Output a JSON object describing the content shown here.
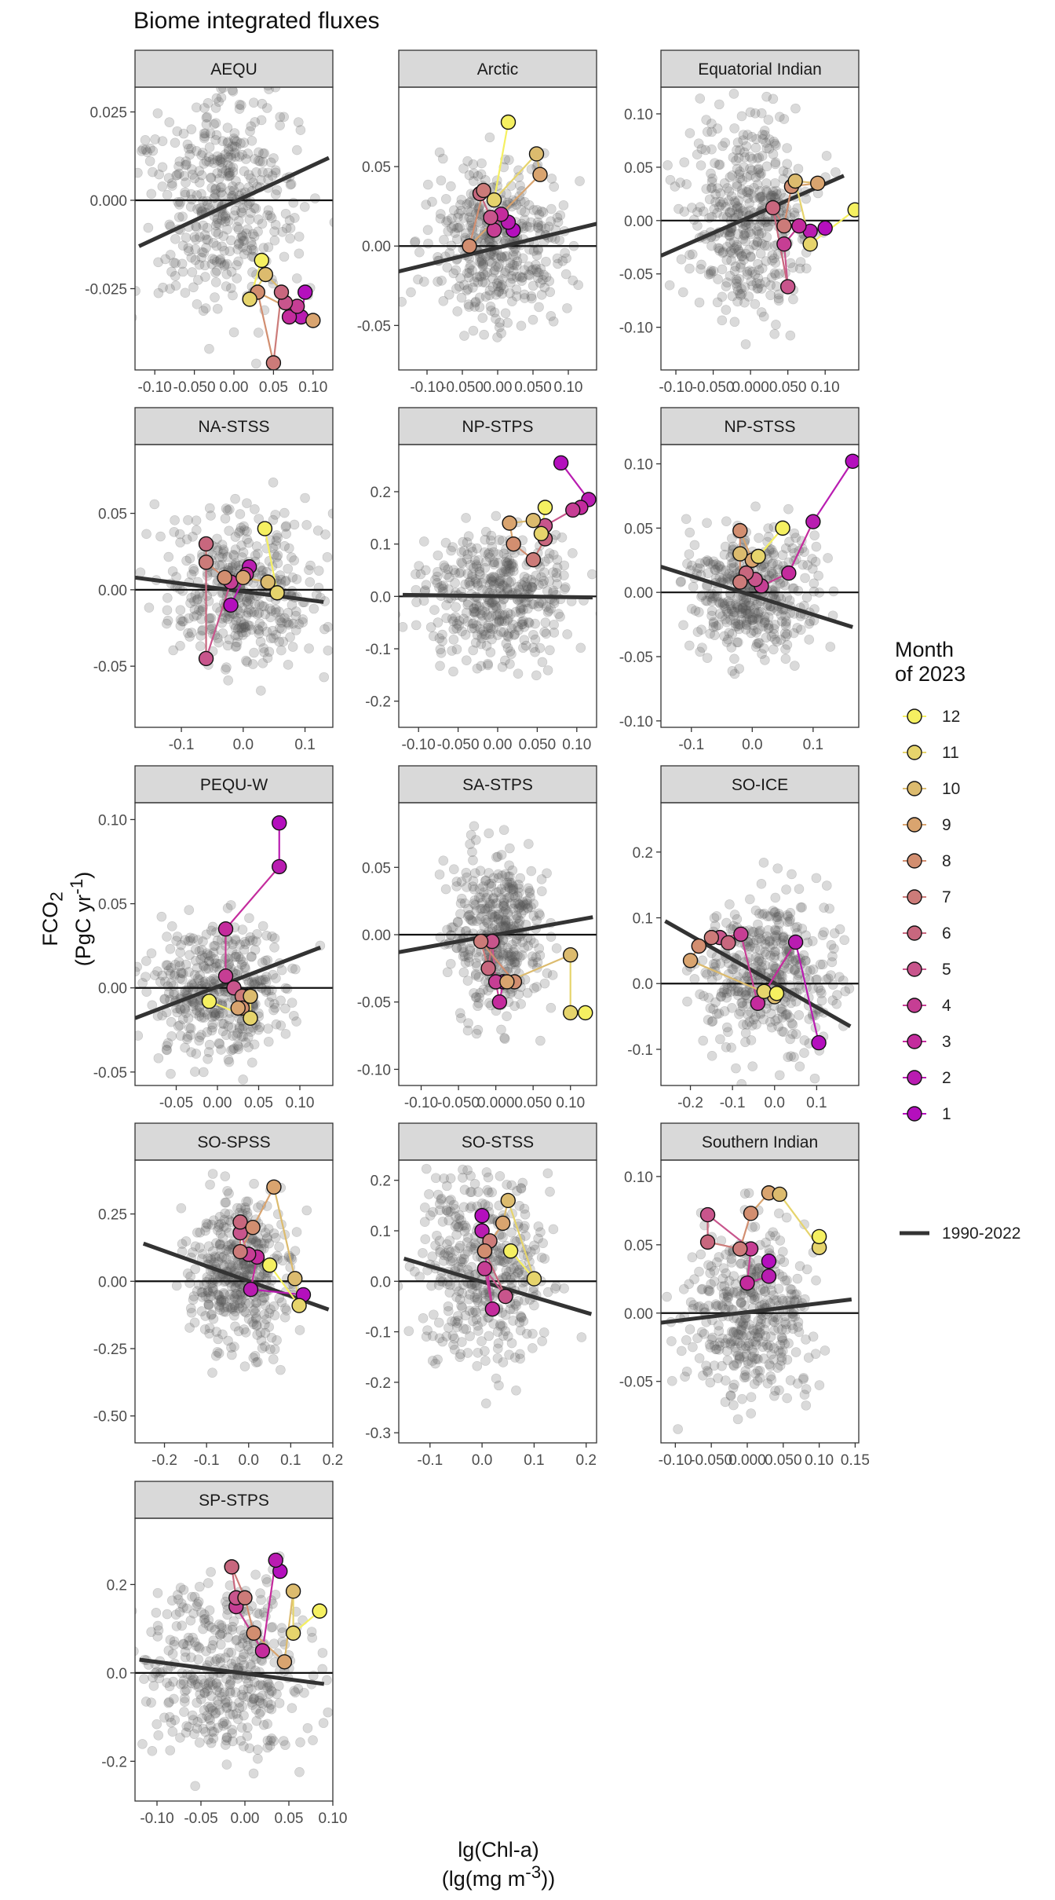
{
  "title": "Biome integrated fluxes",
  "y_axis_label": "FCO2 (PgC yr-1)",
  "x_axis_label": "lg(Chl-a) (lg(mg m-3))",
  "legend": {
    "title": "Month of 2023",
    "months": [
      "12",
      "11",
      "10",
      "9",
      "8",
      "7",
      "6",
      "5",
      "4",
      "3",
      "2",
      "1"
    ],
    "line_label": "1990-2022"
  },
  "colors": {
    "1": "#b40fbd",
    "2": "#b91cb1",
    "3": "#c42b9d",
    "4": "#c63e94",
    "5": "#c8558c",
    "6": "#c8677e",
    "7": "#cc7b79",
    "8": "#d28e70",
    "9": "#d9a46f",
    "10": "#dcbb6e",
    "11": "#e6d46c",
    "12": "#f5f061",
    "background_points": "#555555",
    "regression_line": "#333333",
    "strip": "#d9d9d9"
  },
  "chart_data": [
    {
      "type": "scatter",
      "title": "AEQU",
      "xlim": [
        -0.125,
        0.125
      ],
      "ylim": [
        -0.048,
        0.032
      ],
      "x_ticks": [
        -0.1,
        -0.05,
        0.0,
        0.05,
        0.1
      ],
      "x_tick_labels": [
        "-0.10",
        "-0.050",
        "0.00",
        "0.05",
        "0.10"
      ],
      "y_ticks": [
        -0.025,
        0.0,
        0.025
      ],
      "y_tick_labels": [
        "-0.025",
        "0.000",
        "0.025"
      ],
      "background": {
        "center": [
          -0.01,
          0.0
        ],
        "spread": [
          0.045,
          0.015
        ]
      },
      "regression": [
        [
          -0.12,
          -0.013
        ],
        [
          0.12,
          0.012
        ]
      ],
      "months_x": [
        0.09,
        0.085,
        0.07,
        0.08,
        0.065,
        0.06,
        0.05,
        0.03,
        0.1,
        0.04,
        0.02,
        0.035
      ],
      "months_y": [
        -0.026,
        -0.033,
        -0.033,
        -0.03,
        -0.029,
        -0.026,
        -0.046,
        -0.026,
        -0.034,
        -0.021,
        -0.028,
        -0.017
      ]
    },
    {
      "type": "scatter",
      "title": "Arctic",
      "xlim": [
        -0.14,
        0.14
      ],
      "ylim": [
        -0.078,
        0.1
      ],
      "x_ticks": [
        -0.1,
        -0.05,
        0.0,
        0.05,
        0.1
      ],
      "x_tick_labels": [
        "-0.10",
        "-0.050",
        "0.00",
        "0.050",
        "0.10"
      ],
      "y_ticks": [
        -0.05,
        0.0,
        0.05
      ],
      "y_tick_labels": [
        "-0.05",
        "0.00",
        "0.05"
      ],
      "background": {
        "center": [
          0.0,
          0.0
        ],
        "spread": [
          0.045,
          0.025
        ]
      },
      "regression": [
        [
          -0.14,
          -0.016
        ],
        [
          0.14,
          0.014
        ]
      ],
      "months_x": [
        0.022,
        0.015,
        0.005,
        -0.005,
        -0.01,
        -0.025,
        -0.02,
        -0.04,
        0.06,
        0.055,
        -0.005,
        0.015
      ],
      "months_y": [
        0.01,
        0.015,
        0.02,
        0.01,
        0.018,
        0.033,
        0.035,
        0.0,
        0.045,
        0.058,
        0.029,
        0.078
      ]
    },
    {
      "type": "scatter",
      "title": "Equatorial Indian",
      "xlim": [
        -0.12,
        0.145
      ],
      "ylim": [
        -0.14,
        0.125
      ],
      "x_ticks": [
        -0.1,
        -0.05,
        0.0,
        0.05,
        0.1
      ],
      "x_tick_labels": [
        "-0.10",
        "-0.050",
        "0.000",
        "0.050",
        "0.10"
      ],
      "y_ticks": [
        -0.1,
        -0.05,
        0.0,
        0.05,
        0.1
      ],
      "y_tick_labels": [
        "-0.10",
        "-0.05",
        "0.00",
        "0.05",
        "0.10"
      ],
      "background": {
        "center": [
          0.0,
          0.0
        ],
        "spread": [
          0.04,
          0.045
        ]
      },
      "regression": [
        [
          -0.12,
          -0.033
        ],
        [
          0.125,
          0.042
        ]
      ],
      "months_x": [
        0.1,
        0.08,
        0.065,
        0.045,
        0.05,
        0.03,
        0.045,
        0.055,
        0.09,
        0.06,
        0.08,
        0.14
      ],
      "months_y": [
        -0.007,
        -0.01,
        -0.005,
        -0.022,
        -0.062,
        0.012,
        -0.005,
        0.032,
        0.035,
        0.037,
        -0.022,
        0.01
      ]
    },
    {
      "type": "scatter",
      "title": "NA-STSS",
      "xlim": [
        -0.175,
        0.145
      ],
      "ylim": [
        -0.09,
        0.095
      ],
      "x_ticks": [
        -0.1,
        0.0,
        0.1
      ],
      "x_tick_labels": [
        "-0.1",
        "0.0",
        "0.1"
      ],
      "y_ticks": [
        -0.05,
        0.0,
        0.05
      ],
      "y_tick_labels": [
        "-0.05",
        "0.00",
        "0.05"
      ],
      "background": {
        "center": [
          0.0,
          0.0
        ],
        "spread": [
          0.06,
          0.025
        ]
      },
      "regression": [
        [
          -0.175,
          0.008
        ],
        [
          0.13,
          -0.008
        ]
      ],
      "months_x": [
        -0.02,
        0.01,
        0.005,
        -0.02,
        -0.06,
        -0.06,
        -0.06,
        -0.03,
        0.0,
        0.04,
        0.055,
        0.035
      ],
      "months_y": [
        -0.01,
        0.015,
        0.01,
        0.005,
        -0.045,
        0.03,
        0.018,
        0.008,
        0.008,
        0.005,
        -0.002,
        0.04
      ]
    },
    {
      "type": "scatter",
      "title": "NP-STPS",
      "xlim": [
        -0.125,
        0.125
      ],
      "ylim": [
        -0.25,
        0.29
      ],
      "x_ticks": [
        -0.1,
        -0.05,
        0.0,
        0.05,
        0.1
      ],
      "x_tick_labels": [
        "-0.10",
        "-0.050",
        "0.00",
        "0.050",
        "0.10"
      ],
      "y_ticks": [
        -0.2,
        -0.1,
        0.0,
        0.1,
        0.2
      ],
      "y_tick_labels": [
        "-0.2",
        "-0.1",
        "0.0",
        "0.1",
        "0.2"
      ],
      "background": {
        "center": [
          0.0,
          0.0
        ],
        "spread": [
          0.045,
          0.06
        ]
      },
      "regression": [
        [
          -0.12,
          0.003
        ],
        [
          0.12,
          -0.002
        ]
      ],
      "months_x": [
        0.08,
        0.115,
        0.105,
        0.095,
        0.06,
        0.06,
        0.045,
        0.02,
        0.015,
        0.045,
        0.055,
        0.06
      ],
      "months_y": [
        0.255,
        0.185,
        0.17,
        0.165,
        0.135,
        0.11,
        0.07,
        0.1,
        0.14,
        0.145,
        0.12,
        0.17
      ]
    },
    {
      "type": "scatter",
      "title": "NP-STSS",
      "xlim": [
        -0.15,
        0.175
      ],
      "ylim": [
        -0.105,
        0.115
      ],
      "x_ticks": [
        -0.1,
        0.0,
        0.1
      ],
      "x_tick_labels": [
        "-0.1",
        "0.0",
        "0.1"
      ],
      "y_ticks": [
        -0.1,
        -0.05,
        0.0,
        0.05,
        0.1
      ],
      "y_tick_labels": [
        "-0.10",
        "-0.05",
        "0.00",
        "0.05",
        "0.10"
      ],
      "background": {
        "center": [
          0.0,
          0.0
        ],
        "spread": [
          0.05,
          0.025
        ]
      },
      "regression": [
        [
          -0.15,
          0.02
        ],
        [
          0.165,
          -0.027
        ]
      ],
      "months_x": [
        0.165,
        0.1,
        0.06,
        0.015,
        0.005,
        -0.01,
        -0.02,
        -0.02,
        0.0,
        -0.02,
        0.01,
        0.05
      ],
      "months_y": [
        0.102,
        0.055,
        0.015,
        0.005,
        0.01,
        0.015,
        0.008,
        0.048,
        0.025,
        0.03,
        0.028,
        0.05
      ]
    },
    {
      "type": "scatter",
      "title": "PEQU-W",
      "xlim": [
        -0.1,
        0.14
      ],
      "ylim": [
        -0.058,
        0.11
      ],
      "x_ticks": [
        -0.05,
        0.0,
        0.05,
        0.1
      ],
      "x_tick_labels": [
        "-0.05",
        "0.00",
        "0.05",
        "0.10"
      ],
      "y_ticks": [
        -0.05,
        0.0,
        0.05,
        0.1
      ],
      "y_tick_labels": [
        "-0.05",
        "0.00",
        "0.05",
        "0.10"
      ],
      "background": {
        "center": [
          0.0,
          0.0
        ],
        "spread": [
          0.04,
          0.02
        ]
      },
      "regression": [
        [
          -0.1,
          -0.018
        ],
        [
          0.125,
          0.024
        ]
      ],
      "months_x": [
        0.075,
        0.075,
        0.01,
        0.01,
        0.02,
        0.035,
        0.03,
        0.03,
        0.025,
        0.04,
        0.04,
        -0.01
      ],
      "months_y": [
        0.098,
        0.072,
        0.035,
        0.007,
        0.0,
        -0.005,
        -0.005,
        -0.012,
        -0.012,
        -0.005,
        -0.018,
        -0.008
      ]
    },
    {
      "type": "scatter",
      "title": "SA-STPS",
      "xlim": [
        -0.13,
        0.135
      ],
      "ylim": [
        -0.112,
        0.098
      ],
      "x_ticks": [
        -0.1,
        -0.05,
        0.0,
        0.05,
        0.1
      ],
      "x_tick_labels": [
        "-0.10",
        "-0.050",
        "0.000",
        "0.050",
        "0.10"
      ],
      "y_ticks": [
        -0.1,
        -0.05,
        0.0,
        0.05
      ],
      "y_tick_labels": [
        "-0.10",
        "-0.05",
        "0.00",
        "0.05"
      ],
      "background": {
        "center": [
          0.0,
          0.0
        ],
        "spread": [
          0.03,
          0.03
        ]
      },
      "regression": [
        [
          -0.13,
          -0.013
        ],
        [
          0.13,
          0.013
        ]
      ],
      "months_x": [
        0.01,
        0.01,
        0.005,
        0.0,
        -0.005,
        -0.01,
        -0.02,
        0.025,
        0.015,
        0.1,
        0.1,
        0.12
      ],
      "months_y": [
        -0.035,
        -0.035,
        -0.05,
        -0.035,
        -0.005,
        -0.025,
        -0.005,
        -0.035,
        -0.035,
        -0.015,
        -0.058,
        -0.058
      ]
    },
    {
      "type": "scatter",
      "title": "SO-ICE",
      "xlim": [
        -0.27,
        0.2
      ],
      "ylim": [
        -0.155,
        0.275
      ],
      "x_ticks": [
        -0.2,
        -0.1,
        0.0,
        0.1
      ],
      "x_tick_labels": [
        "-0.2",
        "-0.1",
        "0.0",
        "0.1"
      ],
      "y_ticks": [
        -0.1,
        0.0,
        0.1,
        0.2
      ],
      "y_tick_labels": [
        "-0.1",
        "0.0",
        "0.1",
        "0.2"
      ],
      "background": {
        "center": [
          -0.02,
          0.01
        ],
        "spread": [
          0.08,
          0.06
        ]
      },
      "regression": [
        [
          -0.26,
          0.095
        ],
        [
          0.18,
          -0.065
        ]
      ],
      "months_x": [
        0.105,
        0.05,
        -0.04,
        -0.08,
        -0.13,
        -0.11,
        -0.15,
        -0.18,
        -0.2,
        0.0,
        -0.025,
        0.005
      ],
      "months_y": [
        -0.09,
        0.063,
        -0.03,
        0.075,
        0.07,
        0.062,
        0.07,
        0.057,
        0.035,
        -0.02,
        -0.012,
        -0.015
      ]
    },
    {
      "type": "scatter",
      "title": "SO-SPSS",
      "xlim": [
        -0.27,
        0.2
      ],
      "ylim": [
        -0.6,
        0.45
      ],
      "x_ticks": [
        -0.2,
        -0.1,
        0.0,
        0.1,
        0.2
      ],
      "x_tick_labels": [
        "-0.2",
        "-0.1",
        "0.0",
        "0.1",
        "0.2"
      ],
      "y_ticks": [
        -0.5,
        -0.25,
        0.0,
        0.25
      ],
      "y_tick_labels": [
        "-0.50",
        "-0.25",
        "0.00",
        "0.25"
      ],
      "background": {
        "center": [
          -0.02,
          0.02
        ],
        "spread": [
          0.06,
          0.14
        ]
      },
      "regression": [
        [
          -0.25,
          0.14
        ],
        [
          0.19,
          -0.105
        ]
      ],
      "months_x": [
        0.13,
        0.005,
        0.02,
        0.0,
        -0.02,
        -0.02,
        -0.02,
        0.01,
        0.06,
        0.11,
        0.12,
        0.05
      ],
      "months_y": [
        -0.05,
        -0.03,
        0.09,
        0.1,
        0.18,
        0.22,
        0.11,
        0.2,
        0.35,
        0.01,
        -0.09,
        0.06
      ]
    },
    {
      "type": "scatter",
      "title": "SO-STSS",
      "xlim": [
        -0.16,
        0.22
      ],
      "ylim": [
        -0.32,
        0.24
      ],
      "x_ticks": [
        -0.1,
        0.0,
        0.1,
        0.2
      ],
      "x_tick_labels": [
        "-0.1",
        "0.0",
        "0.1",
        "0.2"
      ],
      "y_ticks": [
        -0.3,
        -0.2,
        -0.1,
        0.0,
        0.1,
        0.2
      ],
      "y_tick_labels": [
        "-0.3",
        "-0.2",
        "-0.1",
        "0.0",
        "0.1",
        "0.2"
      ],
      "background": {
        "center": [
          0.0,
          0.02
        ],
        "spread": [
          0.06,
          0.1
        ]
      },
      "regression": [
        [
          -0.15,
          0.045
        ],
        [
          0.21,
          -0.065
        ]
      ],
      "months_x": [
        0.0,
        0.0,
        0.02,
        0.005,
        0.045,
        0.005,
        0.015,
        0.005,
        0.04,
        0.05,
        0.1,
        0.055
      ],
      "months_y": [
        0.13,
        0.1,
        -0.055,
        0.025,
        -0.03,
        0.06,
        0.08,
        0.06,
        0.115,
        0.16,
        0.005,
        0.06
      ]
    },
    {
      "type": "scatter",
      "title": "Southern Indian",
      "xlim": [
        -0.12,
        0.155
      ],
      "ylim": [
        -0.095,
        0.112
      ],
      "x_ticks": [
        -0.1,
        -0.05,
        0.0,
        0.05,
        0.1,
        0.15
      ],
      "x_tick_labels": [
        "-0.10",
        "-0.050",
        "0.000",
        "0.050",
        "0.10",
        "0.15"
      ],
      "y_ticks": [
        -0.05,
        0.0,
        0.05,
        0.1
      ],
      "y_tick_labels": [
        "-0.05",
        "0.00",
        "0.05",
        "0.10"
      ],
      "background": {
        "center": [
          0.0,
          0.0
        ],
        "spread": [
          0.04,
          0.03
        ]
      },
      "regression": [
        [
          -0.12,
          -0.007
        ],
        [
          0.145,
          0.01
        ]
      ],
      "months_x": [
        0.03,
        0.03,
        0.0,
        0.005,
        -0.055,
        -0.055,
        -0.01,
        0.005,
        0.03,
        0.045,
        0.1,
        0.1
      ],
      "months_y": [
        0.038,
        0.027,
        0.022,
        0.047,
        0.072,
        0.052,
        0.047,
        0.073,
        0.088,
        0.087,
        0.048,
        0.056
      ]
    },
    {
      "type": "scatter",
      "title": "SP-STPS",
      "xlim": [
        -0.125,
        0.1
      ],
      "ylim": [
        -0.29,
        0.35
      ],
      "x_ticks": [
        -0.1,
        -0.05,
        0.0,
        0.05,
        0.1
      ],
      "x_tick_labels": [
        "-0.10",
        "-0.05",
        "0.00",
        "0.05",
        "0.10"
      ],
      "y_ticks": [
        -0.2,
        0.0,
        0.2
      ],
      "y_tick_labels": [
        "-0.2",
        "0.0",
        "0.2"
      ],
      "background": {
        "center": [
          -0.02,
          0.0
        ],
        "spread": [
          0.045,
          0.1
        ]
      },
      "regression": [
        [
          -0.12,
          0.03
        ],
        [
          0.09,
          -0.025
        ]
      ],
      "months_x": [
        0.04,
        0.035,
        0.02,
        -0.01,
        -0.01,
        -0.015,
        0.0,
        0.01,
        0.045,
        0.055,
        0.055,
        0.085
      ],
      "months_y": [
        0.23,
        0.255,
        0.05,
        0.15,
        0.17,
        0.24,
        0.17,
        0.09,
        0.025,
        0.185,
        0.09,
        0.14
      ]
    }
  ]
}
